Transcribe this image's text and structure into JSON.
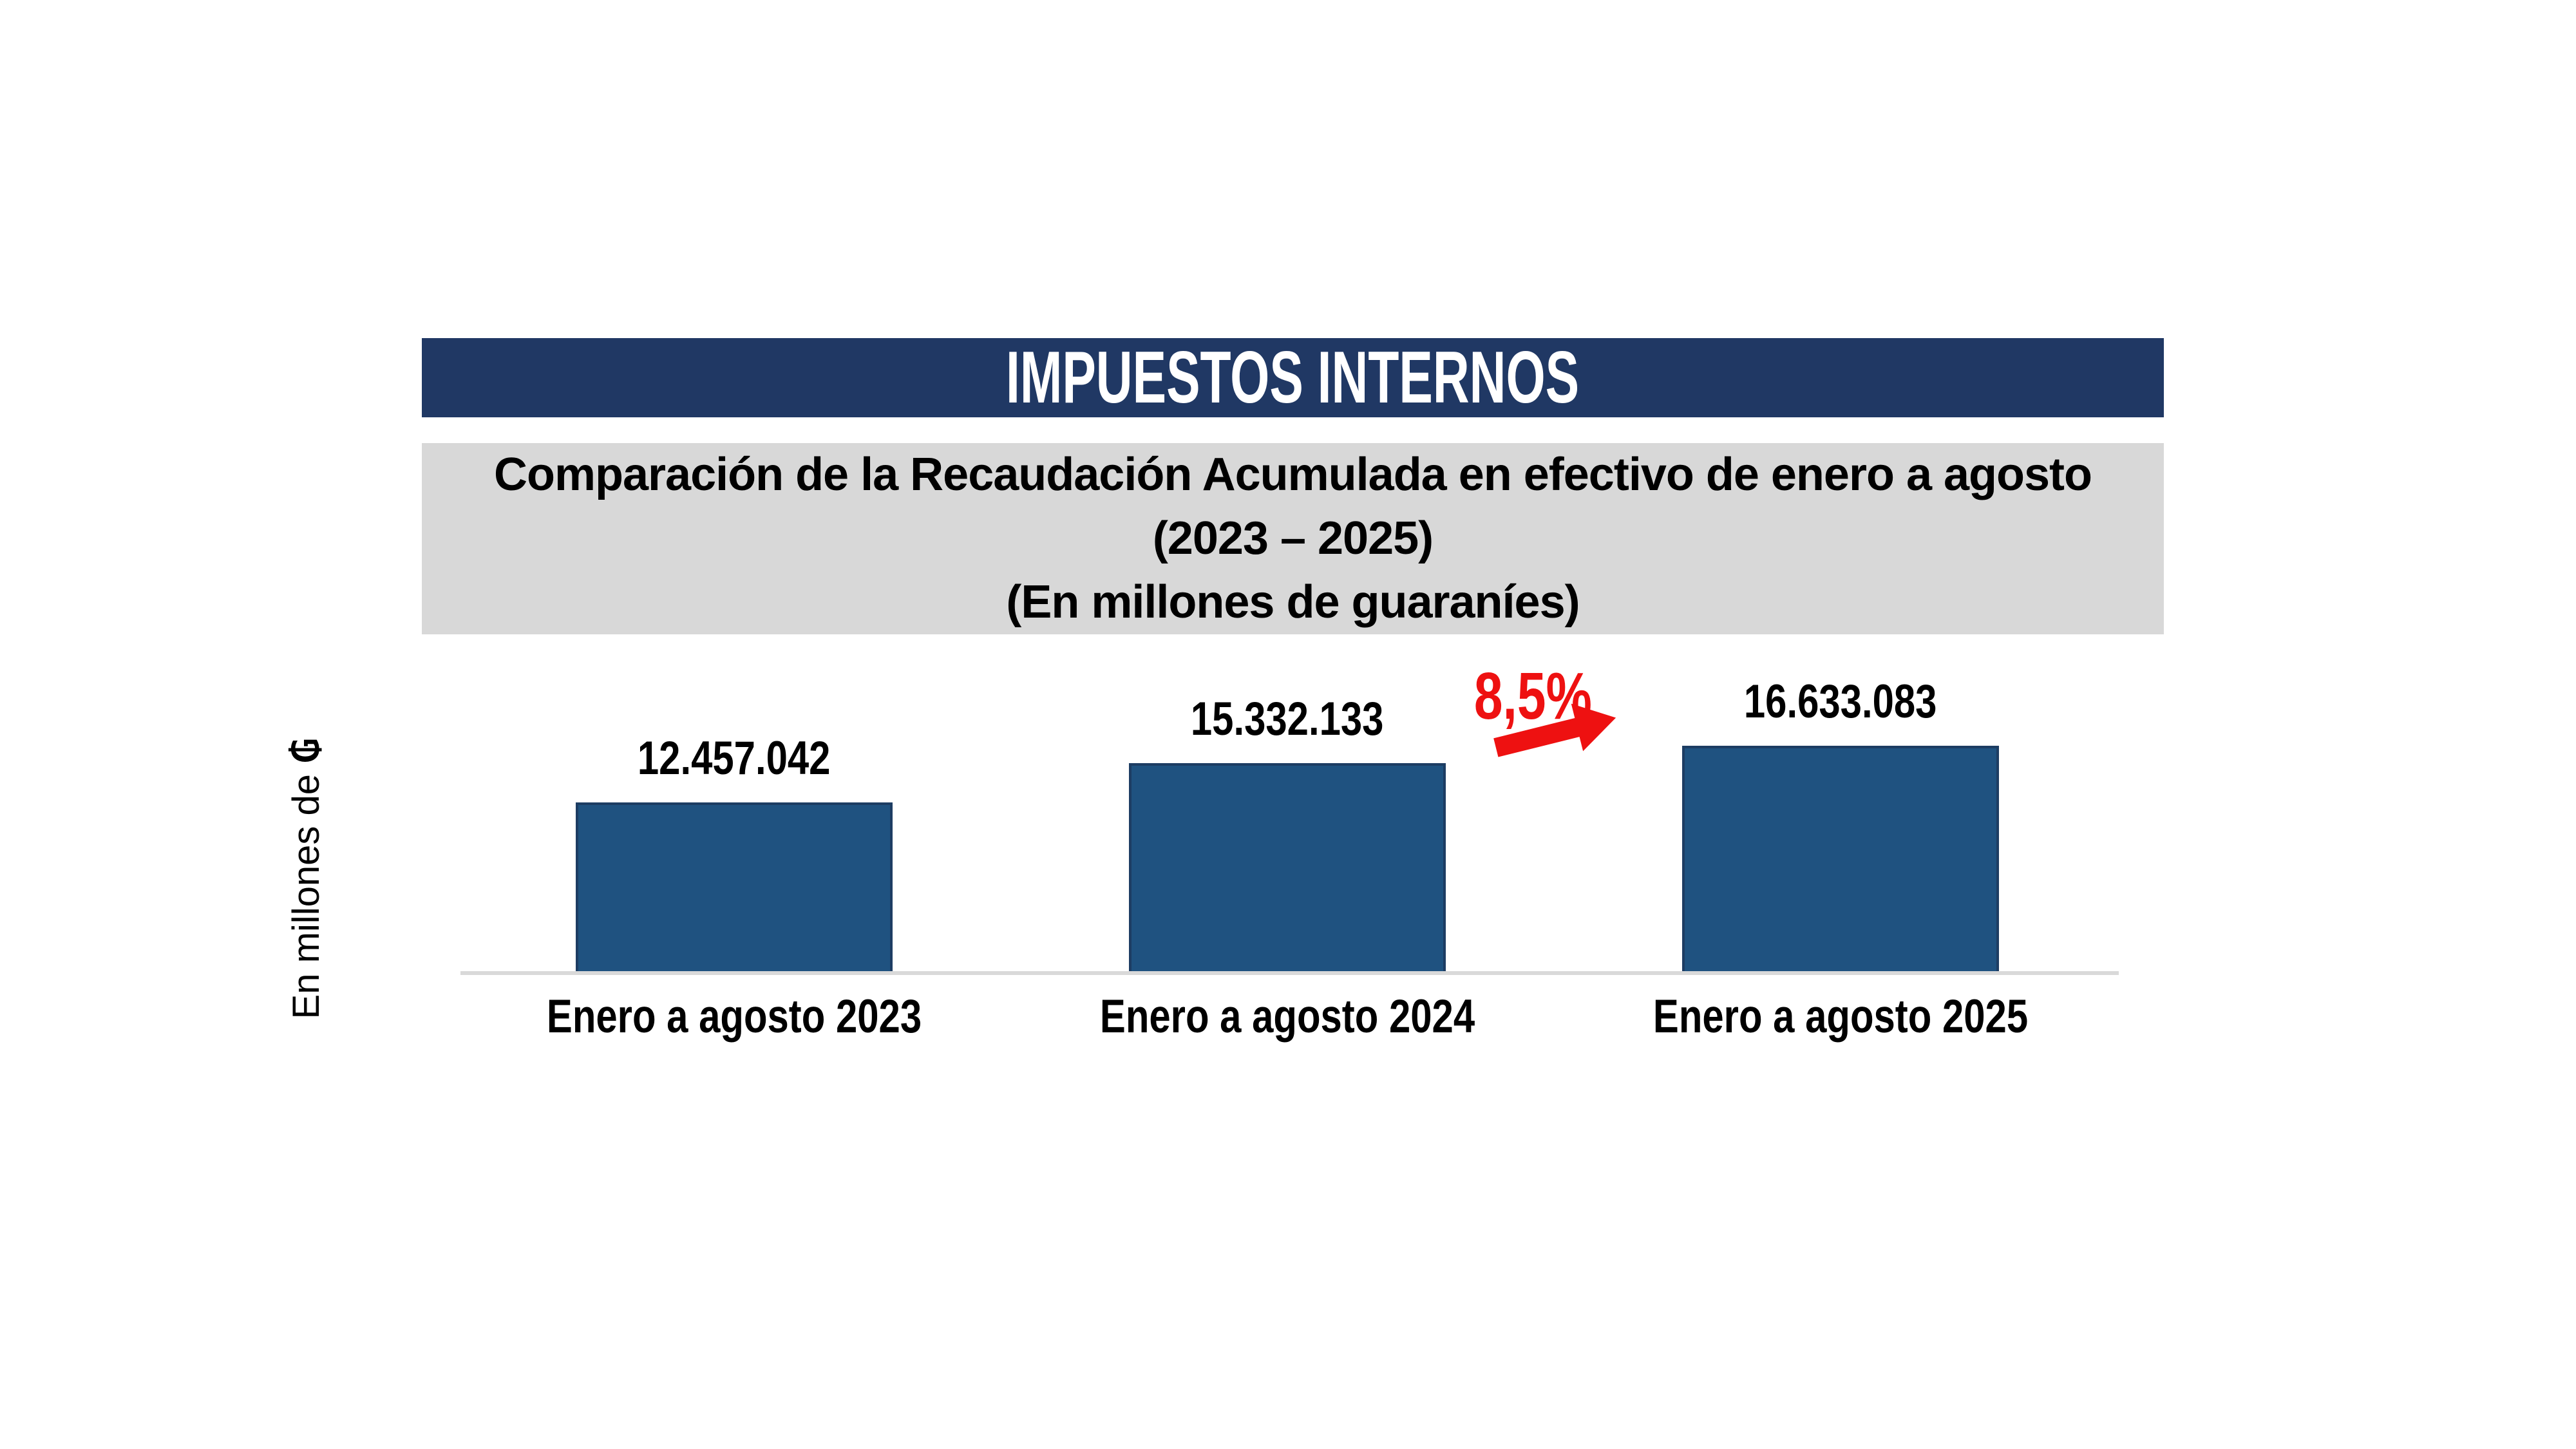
{
  "banner": {
    "title": "IMPUESTOS INTERNOS",
    "bg_color": "#203864",
    "text_color": "#FFFFFF"
  },
  "subtitle": {
    "bg_color": "#D8D8D8",
    "lines": [
      "Comparación de la Recaudación Acumulada en efectivo de enero a agosto",
      "(2023 – 2025)",
      "(En millones de guaraníes)"
    ]
  },
  "chart_data": {
    "type": "bar",
    "title": "Comparación de la Recaudación Acumulada en efectivo de enero a agosto (2023 – 2025)",
    "units_note": "(En millones de guaraníes)",
    "categories": [
      "Enero a agosto 2023",
      "Enero a agosto 2024",
      "Enero a agosto 2025"
    ],
    "values": [
      12457042,
      15332133,
      16633083
    ],
    "value_labels": [
      "12.457.042",
      "15.332.133",
      "16.633.083"
    ],
    "ylabel": "En millones de ₲",
    "ylabel_prefix": "En millones de ",
    "ylabel_symbol": "₲",
    "ylim": [
      0,
      16633083
    ],
    "grid": false,
    "legend": false,
    "bar_color": "#1F5280",
    "bar_border_color": "#1D3D63",
    "axis_line_color": "#D9D9D9",
    "annotation": {
      "text": "8,5%",
      "color": "#EE1111",
      "icon": "up-right-arrow",
      "between": [
        "Enero a agosto 2024",
        "Enero a agosto 2025"
      ]
    }
  }
}
